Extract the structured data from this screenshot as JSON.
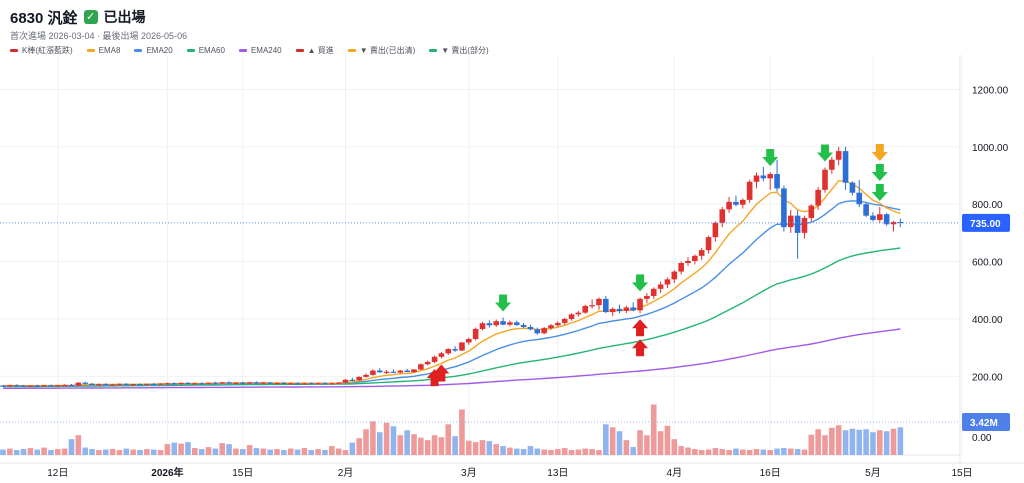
{
  "header": {
    "title": "6830 汎銓",
    "status": "已出場",
    "subline": "首次進場 2026-03-04 · 最後出場 2026-05-06"
  },
  "legend": [
    {
      "label": "K棒(紅漲藍跌)",
      "color": "#d32f2f"
    },
    {
      "label": "EMA8",
      "color": "#f5a623"
    },
    {
      "label": "EMA20",
      "color": "#4a8fe7"
    },
    {
      "label": "EMA60",
      "color": "#22b573"
    },
    {
      "label": "EMA240",
      "color": "#a05be8"
    },
    {
      "label": "▲ 買進",
      "color": "#d32f2f"
    },
    {
      "label": "▼ 賣出(已出清)",
      "color": "#f5a623"
    },
    {
      "label": "▼ 賣出(部分)",
      "color": "#22b573"
    }
  ],
  "colors": {
    "up": "#e03131",
    "down": "#2c6fd6",
    "vol_up": "#ef9a9a",
    "vol_down": "#90b4ee",
    "ema8": "#f5a623",
    "ema20": "#4a8fe7",
    "ema60": "#22b573",
    "ema240": "#a05be8",
    "buy": "#e02020",
    "sell_exit": "#f5a623",
    "sell_partial": "#22c04a"
  },
  "chart_data": {
    "type": "candlestick",
    "y_ticks": [
      1200,
      1000,
      800,
      600,
      400,
      200
    ],
    "ylim": [
      100,
      1320
    ],
    "vol_ticks": [
      "0.00"
    ],
    "last_price_label": "735.00",
    "last_volume_label": "3.42M",
    "x_ticks": [
      {
        "label": "12日",
        "bar": 8,
        "bold": false
      },
      {
        "label": "2026年",
        "bar": 24,
        "bold": true
      },
      {
        "label": "15日",
        "bar": 35,
        "bold": false
      },
      {
        "label": "2月",
        "bar": 50,
        "bold": false
      },
      {
        "label": "3月",
        "bar": 68,
        "bold": false
      },
      {
        "label": "13日",
        "bar": 81,
        "bold": false
      },
      {
        "label": "4月",
        "bar": 98,
        "bold": false
      },
      {
        "label": "16日",
        "bar": 112,
        "bold": false
      },
      {
        "label": "5月",
        "bar": 127,
        "bold": false
      },
      {
        "label": "15日",
        "bar": 140,
        "bold": false
      }
    ],
    "candles": [
      [
        168,
        170,
        165,
        167,
        1.1
      ],
      [
        167,
        171,
        165,
        169,
        1.3
      ],
      [
        169,
        172,
        166,
        168,
        1.0
      ],
      [
        168,
        170,
        165,
        166,
        1.2
      ],
      [
        166,
        169,
        164,
        168,
        1.4
      ],
      [
        168,
        171,
        166,
        167,
        1.1
      ],
      [
        167,
        170,
        165,
        169,
        1.5
      ],
      [
        169,
        171,
        166,
        167,
        1.0
      ],
      [
        167,
        170,
        165,
        169,
        1.2
      ],
      [
        169,
        172,
        167,
        170,
        1.3
      ],
      [
        170,
        173,
        167,
        168,
        3.2
      ],
      [
        168,
        180,
        166,
        178,
        4.0
      ],
      [
        178,
        181,
        172,
        174,
        1.5
      ],
      [
        174,
        177,
        170,
        172,
        1.2
      ],
      [
        172,
        175,
        169,
        173,
        1.0
      ],
      [
        173,
        176,
        170,
        171,
        1.1
      ],
      [
        171,
        174,
        168,
        172,
        1.2
      ],
      [
        172,
        175,
        169,
        174,
        1.0
      ],
      [
        174,
        176,
        170,
        171,
        1.3
      ],
      [
        171,
        174,
        168,
        173,
        1.1
      ],
      [
        173,
        176,
        170,
        172,
        1.0
      ],
      [
        172,
        175,
        169,
        174,
        1.2
      ],
      [
        174,
        177,
        171,
        173,
        1.1
      ],
      [
        173,
        176,
        170,
        175,
        1.0
      ],
      [
        175,
        178,
        172,
        176,
        2.2
      ],
      [
        176,
        179,
        173,
        174,
        2.5
      ],
      [
        174,
        178,
        171,
        177,
        2.3
      ],
      [
        177,
        180,
        174,
        175,
        2.6
      ],
      [
        175,
        178,
        172,
        176,
        1.4
      ],
      [
        176,
        179,
        173,
        174,
        1.2
      ],
      [
        174,
        177,
        171,
        178,
        1.6
      ],
      [
        178,
        181,
        175,
        176,
        1.3
      ],
      [
        176,
        180,
        173,
        179,
        2.4
      ],
      [
        179,
        182,
        176,
        177,
        2.2
      ],
      [
        177,
        180,
        174,
        178,
        1.3
      ],
      [
        178,
        181,
        175,
        176,
        1.2
      ],
      [
        176,
        180,
        173,
        179,
        2.0
      ],
      [
        179,
        182,
        176,
        177,
        1.4
      ],
      [
        177,
        180,
        174,
        178,
        1.3
      ],
      [
        178,
        181,
        175,
        176,
        1.1
      ],
      [
        176,
        179,
        173,
        177,
        1.2
      ],
      [
        177,
        180,
        174,
        175,
        1.0
      ],
      [
        175,
        178,
        172,
        176,
        1.3
      ],
      [
        176,
        179,
        173,
        174,
        1.1
      ],
      [
        174,
        177,
        171,
        176,
        1.4
      ],
      [
        176,
        179,
        173,
        175,
        1.0
      ],
      [
        175,
        178,
        172,
        176,
        1.2
      ],
      [
        176,
        179,
        173,
        174,
        1.0
      ],
      [
        174,
        177,
        172,
        176,
        1.8
      ],
      [
        176,
        180,
        174,
        178,
        1.3
      ],
      [
        178,
        190,
        176,
        188,
        1.0
      ],
      [
        188,
        195,
        183,
        186,
        2.5
      ],
      [
        186,
        200,
        184,
        198,
        3.4
      ],
      [
        198,
        210,
        195,
        205,
        5.2
      ],
      [
        205,
        225,
        202,
        220,
        6.8
      ],
      [
        220,
        228,
        212,
        214,
        4.6
      ],
      [
        214,
        222,
        208,
        216,
        6.5
      ],
      [
        216,
        224,
        211,
        213,
        5.8
      ],
      [
        213,
        222,
        210,
        220,
        4.0
      ],
      [
        220,
        226,
        214,
        215,
        5.0
      ],
      [
        215,
        225,
        213,
        224,
        4.2
      ],
      [
        224,
        245,
        222,
        242,
        3.5
      ],
      [
        242,
        255,
        238,
        250,
        3.0
      ],
      [
        250,
        272,
        246,
        268,
        4.0
      ],
      [
        268,
        285,
        262,
        280,
        3.6
      ],
      [
        280,
        298,
        275,
        295,
        6.2
      ],
      [
        295,
        305,
        285,
        290,
        3.8
      ],
      [
        290,
        320,
        288,
        318,
        9.2
      ],
      [
        318,
        335,
        310,
        330,
        2.9
      ],
      [
        330,
        370,
        325,
        365,
        2.6
      ],
      [
        365,
        390,
        360,
        385,
        3.0
      ],
      [
        385,
        395,
        370,
        378,
        2.8
      ],
      [
        378,
        398,
        372,
        392,
        2.2
      ],
      [
        392,
        405,
        378,
        380,
        1.8
      ],
      [
        380,
        395,
        374,
        388,
        1.5
      ],
      [
        388,
        394,
        376,
        379,
        1.3
      ],
      [
        379,
        386,
        368,
        372,
        1.2
      ],
      [
        372,
        380,
        360,
        364,
        1.8
      ],
      [
        364,
        370,
        345,
        350,
        1.3
      ],
      [
        350,
        372,
        346,
        368,
        1.1
      ],
      [
        368,
        382,
        362,
        378,
        1.0
      ],
      [
        378,
        392,
        372,
        386,
        1.2
      ],
      [
        386,
        404,
        380,
        400,
        1.4
      ],
      [
        400,
        420,
        394,
        416,
        1.0
      ],
      [
        416,
        428,
        408,
        422,
        1.1
      ],
      [
        422,
        450,
        418,
        445,
        1.3
      ],
      [
        445,
        468,
        436,
        448,
        1.2
      ],
      [
        448,
        475,
        432,
        470,
        1.0
      ],
      [
        470,
        480,
        420,
        424,
        6.2
      ],
      [
        424,
        440,
        410,
        435,
        5.6
      ],
      [
        435,
        450,
        420,
        428,
        4.8
      ],
      [
        428,
        446,
        420,
        440,
        3.0
      ],
      [
        440,
        458,
        426,
        430,
        1.6
      ],
      [
        430,
        475,
        420,
        470,
        5.0
      ],
      [
        470,
        490,
        455,
        480,
        4.0
      ],
      [
        480,
        510,
        470,
        505,
        10.2
      ],
      [
        505,
        530,
        490,
        520,
        4.8
      ],
      [
        520,
        545,
        508,
        538,
        5.9
      ],
      [
        538,
        570,
        525,
        565,
        3.2
      ],
      [
        565,
        600,
        555,
        595,
        1.8
      ],
      [
        595,
        615,
        585,
        602,
        1.5
      ],
      [
        602,
        625,
        590,
        620,
        1.2
      ],
      [
        620,
        648,
        605,
        640,
        1.0
      ],
      [
        640,
        690,
        628,
        685,
        1.1
      ],
      [
        685,
        740,
        670,
        735,
        1.4
      ],
      [
        735,
        790,
        720,
        782,
        1.2
      ],
      [
        782,
        825,
        770,
        808,
        1.0
      ],
      [
        808,
        830,
        792,
        798,
        1.3
      ],
      [
        798,
        820,
        785,
        815,
        1.1
      ],
      [
        815,
        885,
        805,
        878,
        1.0
      ],
      [
        878,
        910,
        855,
        900,
        1.2
      ],
      [
        900,
        930,
        880,
        890,
        1.1
      ],
      [
        890,
        912,
        850,
        905,
        1.0
      ],
      [
        905,
        955,
        845,
        855,
        1.3
      ],
      [
        855,
        865,
        705,
        720,
        1.4
      ],
      [
        720,
        780,
        700,
        760,
        1.3
      ],
      [
        760,
        778,
        610,
        700,
        1.2
      ],
      [
        700,
        760,
        680,
        752,
        1.1
      ],
      [
        752,
        800,
        740,
        795,
        4.1
      ],
      [
        795,
        860,
        780,
        850,
        5.2
      ],
      [
        850,
        928,
        840,
        920,
        4.0
      ],
      [
        920,
        965,
        905,
        955,
        5.5
      ],
      [
        955,
        1000,
        935,
        985,
        6.0
      ],
      [
        985,
        1000,
        850,
        875,
        5.0
      ],
      [
        875,
        880,
        830,
        840,
        5.3
      ],
      [
        840,
        885,
        790,
        800,
        5.1
      ],
      [
        800,
        805,
        755,
        760,
        5.2
      ],
      [
        760,
        772,
        740,
        745,
        4.6
      ],
      [
        745,
        790,
        735,
        765,
        5.0
      ],
      [
        765,
        770,
        725,
        730,
        4.8
      ],
      [
        730,
        742,
        705,
        738,
        5.3
      ],
      [
        738,
        750,
        720,
        735,
        5.6
      ]
    ],
    "ema8": [],
    "ema20": [],
    "ema60": [],
    "ema240": [],
    "markers": [
      {
        "type": "buy",
        "bar": 63,
        "stack": 0
      },
      {
        "type": "buy",
        "bar": 64,
        "stack": 0
      },
      {
        "type": "sell_partial",
        "bar": 73,
        "stack": 0
      },
      {
        "type": "buy",
        "bar": 93,
        "stack": 0
      },
      {
        "type": "buy",
        "bar": 93,
        "stack": 1
      },
      {
        "type": "sell_partial",
        "bar": 93,
        "stack": 0
      },
      {
        "type": "sell_partial",
        "bar": 112,
        "stack": 0
      },
      {
        "type": "sell_partial",
        "bar": 120,
        "stack": 0
      },
      {
        "type": "sell_partial",
        "bar": 128,
        "stack": 0
      },
      {
        "type": "sell_partial",
        "bar": 128,
        "stack": 1
      },
      {
        "type": "sell_exit",
        "bar": 128,
        "stack": 2
      }
    ]
  }
}
